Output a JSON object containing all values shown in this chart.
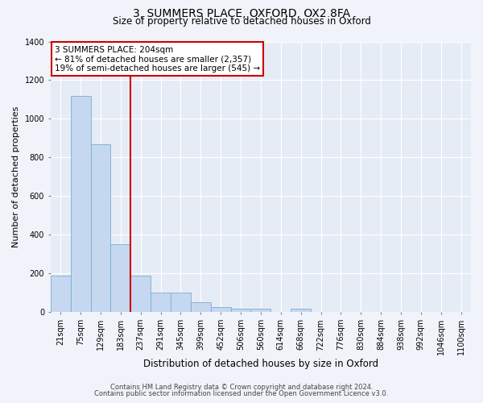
{
  "title": "3, SUMMERS PLACE, OXFORD, OX2 8FA",
  "subtitle": "Size of property relative to detached houses in Oxford",
  "xlabel": "Distribution of detached houses by size in Oxford",
  "ylabel": "Number of detached properties",
  "footnote1": "Contains HM Land Registry data © Crown copyright and database right 2024.",
  "footnote2": "Contains public sector information licensed under the Open Government Licence v3.0.",
  "bar_labels": [
    "21sqm",
    "75sqm",
    "129sqm",
    "183sqm",
    "237sqm",
    "291sqm",
    "345sqm",
    "399sqm",
    "452sqm",
    "506sqm",
    "560sqm",
    "614sqm",
    "668sqm",
    "722sqm",
    "776sqm",
    "830sqm",
    "884sqm",
    "938sqm",
    "992sqm",
    "1046sqm",
    "1100sqm"
  ],
  "bar_values": [
    190,
    1120,
    870,
    350,
    190,
    100,
    100,
    50,
    25,
    20,
    20,
    0,
    20,
    0,
    0,
    0,
    0,
    0,
    0,
    0,
    0
  ],
  "bar_color": "#c5d8f0",
  "bar_edge_color": "#7aacd4",
  "vline_color": "#cc0000",
  "ylim": [
    0,
    1400
  ],
  "yticks": [
    0,
    200,
    400,
    600,
    800,
    1000,
    1200,
    1400
  ],
  "annotation_text": "3 SUMMERS PLACE: 204sqm\n← 81% of detached houses are smaller (2,357)\n19% of semi-detached houses are larger (545) →",
  "bg_color": "#f0f4fa",
  "plot_bg_color": "#e6ecf5",
  "title_fontsize": 10,
  "subtitle_fontsize": 8.5,
  "ylabel_fontsize": 8,
  "xlabel_fontsize": 8.5,
  "tick_fontsize": 7,
  "footnote_fontsize": 6,
  "annot_fontsize": 7.5
}
